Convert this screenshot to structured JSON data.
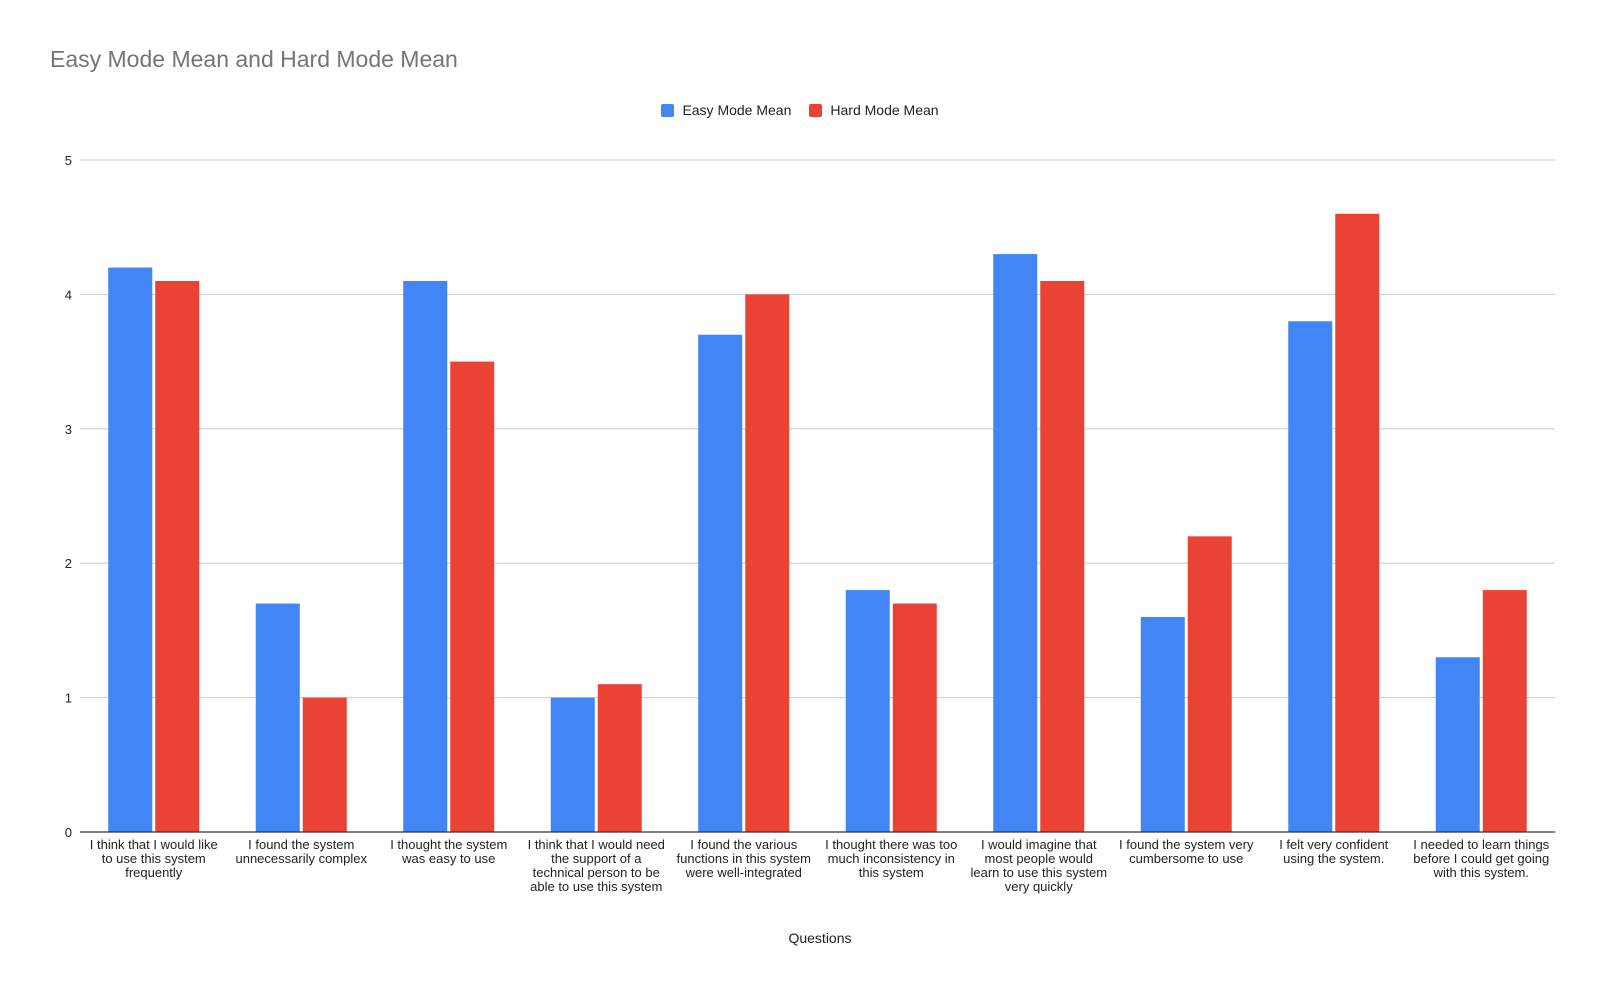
{
  "chart_data": {
    "type": "bar",
    "title": "Easy Mode Mean and Hard Mode Mean",
    "xlabel": "Questions",
    "ylabel": "",
    "ylim": [
      0,
      5
    ],
    "yticks": [
      "0",
      "1",
      "2",
      "3",
      "4",
      "5"
    ],
    "grid": true,
    "legend_position": "top-center",
    "categories": [
      "I think that I would like to use this system frequently",
      "I found the system unnecessarily complex",
      "I thought the system was easy to use",
      "I think that I would need the support of a technical person to be able to use this system",
      "I found the various functions in this system were well-integrated",
      "I thought there was too much inconsistency in this system",
      "I would imagine that most people would learn to use this system very quickly",
      "I found the system very cumbersome to use",
      "I felt very confident using the system.",
      "I needed to learn things before I could get going with this system."
    ],
    "series": [
      {
        "name": "Easy Mode Mean",
        "color": "#4285f4",
        "values": [
          4.2,
          1.7,
          4.1,
          1.0,
          3.7,
          1.8,
          4.3,
          1.6,
          3.8,
          1.3
        ]
      },
      {
        "name": "Hard Mode Mean",
        "color": "#ea4335",
        "values": [
          4.1,
          1.0,
          3.5,
          1.1,
          4.0,
          1.7,
          4.1,
          2.2,
          4.6,
          1.8
        ]
      }
    ]
  }
}
